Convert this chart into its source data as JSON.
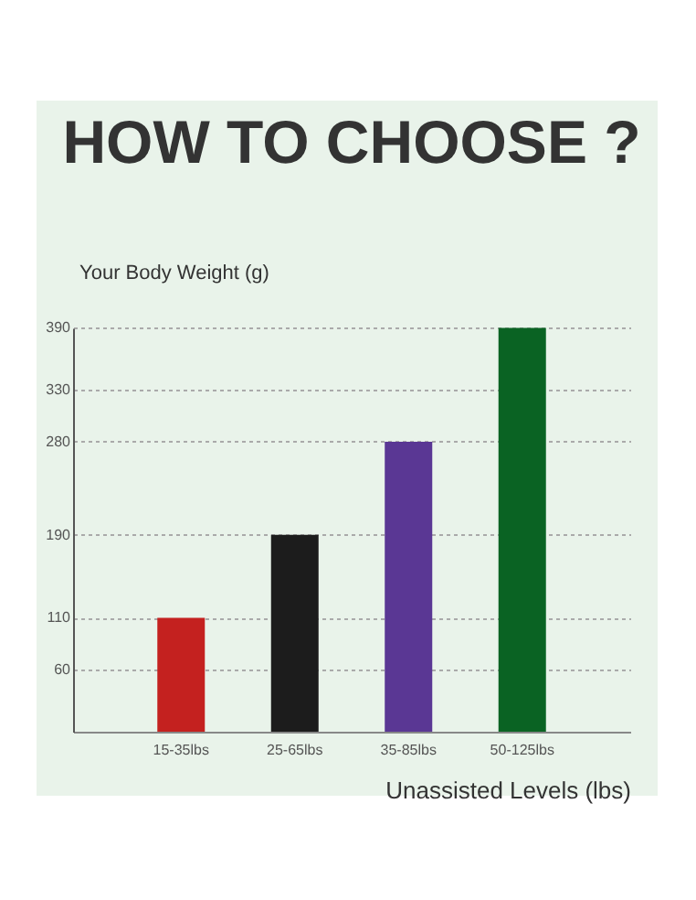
{
  "chart_data": {
    "type": "bar",
    "title": "HOW TO CHOOSE ?",
    "ylabel": "Your Body Weight (g)",
    "xlabel": "Unassisted Levels (lbs)",
    "categories": [
      "15-35lbs",
      "25-65lbs",
      "35-85lbs",
      "50-125lbs"
    ],
    "values": [
      110,
      190,
      280,
      390
    ],
    "colors": [
      "#c4211f",
      "#1c1c1c",
      "#5a3794",
      "#0a6323"
    ],
    "ylim": [
      0,
      390
    ],
    "yticks": [
      60,
      110,
      190,
      280,
      330,
      390
    ],
    "grid": "y"
  }
}
